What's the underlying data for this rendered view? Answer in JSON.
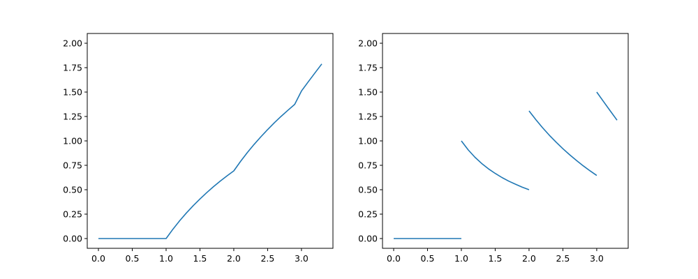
{
  "chart_data": [
    {
      "type": "line",
      "title": "",
      "xlabel": "",
      "ylabel": "",
      "xlim": [
        -0.165,
        3.465
      ],
      "ylim": [
        -0.1,
        2.1
      ],
      "xticks": [
        "0.0",
        "0.5",
        "1.0",
        "1.5",
        "2.0",
        "2.5",
        "3.0"
      ],
      "yticks": [
        "0.00",
        "0.25",
        "0.50",
        "0.75",
        "1.00",
        "1.25",
        "1.50",
        "1.75",
        "2.00"
      ],
      "grid": false,
      "legend": "none",
      "color": "#1f77b4",
      "series": [
        {
          "segments": [
            {
              "x": [
                0.0,
                0.5,
                1.0,
                1.1,
                1.2,
                1.3,
                1.4,
                1.5,
                1.6,
                1.7,
                1.8,
                1.9,
                2.0,
                2.1,
                2.2,
                2.3,
                2.4,
                2.5,
                2.6,
                2.7,
                2.8,
                2.9,
                3.0,
                3.1,
                3.2,
                3.3
              ],
              "y": [
                0.0,
                0.0,
                0.0,
                0.095,
                0.182,
                0.262,
                0.336,
                0.405,
                0.47,
                0.531,
                0.588,
                0.642,
                0.693,
                0.79,
                0.88,
                0.964,
                1.042,
                1.116,
                1.186,
                1.252,
                1.314,
                1.374,
                1.511,
                1.605,
                1.697,
                1.788
              ]
            }
          ]
        }
      ]
    },
    {
      "type": "line",
      "title": "",
      "xlabel": "",
      "ylabel": "",
      "xlim": [
        -0.165,
        3.465
      ],
      "ylim": [
        -0.1,
        2.1
      ],
      "xticks": [
        "0.0",
        "0.5",
        "1.0",
        "1.5",
        "2.0",
        "2.5",
        "3.0"
      ],
      "yticks": [
        "0.00",
        "0.25",
        "0.50",
        "0.75",
        "1.00",
        "1.25",
        "1.50",
        "1.75",
        "2.00"
      ],
      "grid": false,
      "legend": "none",
      "color": "#1f77b4",
      "series": [
        {
          "segments": [
            {
              "x": [
                0.0,
                0.5,
                1.0
              ],
              "y": [
                0.0,
                0.0,
                0.0
              ]
            },
            {
              "x": [
                1.0,
                1.1,
                1.2,
                1.3,
                1.4,
                1.5,
                1.6,
                1.7,
                1.8,
                1.9,
                2.0
              ],
              "y": [
                1.0,
                0.909,
                0.833,
                0.769,
                0.714,
                0.667,
                0.625,
                0.588,
                0.556,
                0.526,
                0.5
              ]
            },
            {
              "x": [
                2.0,
                2.1,
                2.2,
                2.3,
                2.4,
                2.5,
                2.6,
                2.7,
                2.8,
                2.9,
                3.0
              ],
              "y": [
                1.307,
                1.218,
                1.135,
                1.058,
                0.987,
                0.92,
                0.858,
                0.8,
                0.745,
                0.694,
                0.646
              ]
            },
            {
              "x": [
                3.0,
                3.1,
                3.2,
                3.3
              ],
              "y": [
                1.5,
                1.403,
                1.307,
                1.212
              ]
            }
          ]
        }
      ]
    }
  ]
}
